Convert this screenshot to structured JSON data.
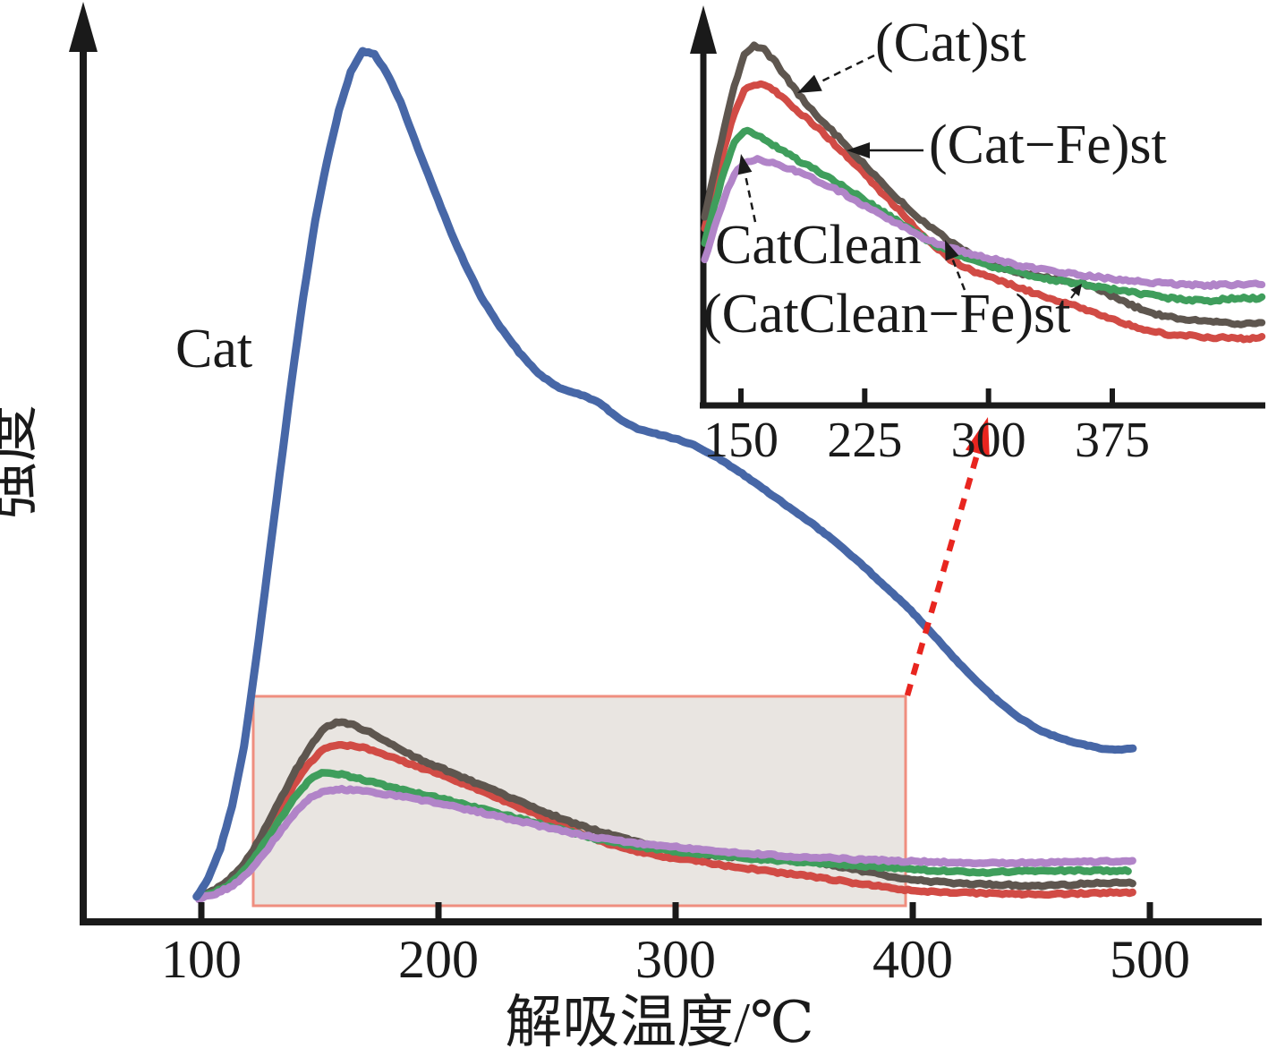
{
  "figure": {
    "background": "#ffffff",
    "axis_color": "#1a1a1a",
    "box_fill": "#e9e5e1",
    "box_border": "#ef8e7f",
    "zoom_arrow_color": "#e8251f"
  },
  "labels": {
    "cat": "Cat",
    "cat_st": "(Cat)st",
    "cat_fe_st": "(Cat−Fe)st",
    "catclean": "CatClean",
    "catclean_fe_st": "(CatClean−Fe)st",
    "xlabel": "解吸温度/℃",
    "ylabel": "强度"
  },
  "chart_data": {
    "type": "line",
    "title": "",
    "xlabel": "解吸温度/℃",
    "ylabel": "强度",
    "x_ticks": [
      100,
      200,
      300,
      400,
      500
    ],
    "xlim": [
      50,
      545
    ],
    "ylim": [
      0,
      105
    ],
    "y_axis_note": "intensity in arbitrary units, arrow axis, no y ticks",
    "grid": false,
    "legend": "inline annotations with arrows",
    "series": [
      {
        "name": "Cat",
        "color": "#4767a7",
        "points": [
          [
            98,
            0.3
          ],
          [
            103,
            2.5
          ],
          [
            108,
            6
          ],
          [
            113,
            11
          ],
          [
            118,
            18
          ],
          [
            123,
            28
          ],
          [
            128,
            39
          ],
          [
            133,
            50
          ],
          [
            138,
            61
          ],
          [
            143,
            71
          ],
          [
            148,
            80
          ],
          [
            153,
            87
          ],
          [
            158,
            93
          ],
          [
            163,
            97.5
          ],
          [
            168,
            100
          ],
          [
            173,
            99.6
          ],
          [
            178,
            97.5
          ],
          [
            184,
            94
          ],
          [
            190,
            89.5
          ],
          [
            197,
            84.5
          ],
          [
            204,
            79.5
          ],
          [
            211,
            75
          ],
          [
            218,
            71
          ],
          [
            226,
            67.5
          ],
          [
            234,
            64.5
          ],
          [
            242,
            62
          ],
          [
            251,
            60.3
          ],
          [
            260,
            59.5
          ],
          [
            268,
            58.5
          ],
          [
            276,
            56.7
          ],
          [
            284,
            55.5
          ],
          [
            293,
            54.8
          ],
          [
            301,
            54.2
          ],
          [
            309,
            53.4
          ],
          [
            318,
            52
          ],
          [
            328,
            50.2
          ],
          [
            338,
            48.2
          ],
          [
            348,
            46.2
          ],
          [
            358,
            44.2
          ],
          [
            368,
            42
          ],
          [
            378,
            39.6
          ],
          [
            388,
            37
          ],
          [
            398,
            34.4
          ],
          [
            408,
            31.4
          ],
          [
            417,
            28.6
          ],
          [
            426,
            26
          ],
          [
            435,
            23.6
          ],
          [
            444,
            21.6
          ],
          [
            453,
            20
          ],
          [
            462,
            19
          ],
          [
            471,
            18.3
          ],
          [
            480,
            17.8
          ],
          [
            488,
            17.6
          ],
          [
            494,
            17.9
          ]
        ]
      },
      {
        "name": "(Cat)st",
        "color": "#5e564f",
        "points": [
          [
            99,
            0.2
          ],
          [
            106,
            1.2
          ],
          [
            112,
            2.4
          ],
          [
            117,
            3.9
          ],
          [
            122,
            5.8
          ],
          [
            128,
            9
          ],
          [
            134,
            12.1
          ],
          [
            140,
            15.3
          ],
          [
            146,
            18
          ],
          [
            152,
            20.3
          ],
          [
            158,
            20.9
          ],
          [
            164,
            20.6
          ],
          [
            171,
            19.7
          ],
          [
            178,
            18.6
          ],
          [
            185,
            17.5
          ],
          [
            193,
            16.4
          ],
          [
            201,
            15.5
          ],
          [
            211,
            14.3
          ],
          [
            222,
            13
          ],
          [
            233,
            11.7
          ],
          [
            244,
            10.4
          ],
          [
            255,
            9.2
          ],
          [
            266,
            8.2
          ],
          [
            277,
            7.3
          ],
          [
            288,
            6.5
          ],
          [
            299,
            5.8
          ],
          [
            310,
            5.4
          ],
          [
            321,
            5.1
          ],
          [
            332,
            4.9
          ],
          [
            343,
            4.7
          ],
          [
            354,
            4.5
          ],
          [
            365,
            4.1
          ],
          [
            376,
            3.5
          ],
          [
            387,
            2.9
          ],
          [
            398,
            2.4
          ],
          [
            409,
            2.1
          ],
          [
            420,
            1.9
          ],
          [
            431,
            1.8
          ],
          [
            442,
            1.7
          ],
          [
            453,
            1.6
          ],
          [
            464,
            1.7
          ],
          [
            475,
            1.9
          ],
          [
            486,
            2
          ],
          [
            494,
            1.9
          ]
        ]
      },
      {
        "name": "(Cat−Fe)st",
        "color": "#d14b45",
        "points": [
          [
            99,
            0.2
          ],
          [
            106,
            1
          ],
          [
            112,
            2
          ],
          [
            117,
            3.5
          ],
          [
            122,
            5.3
          ],
          [
            128,
            8.2
          ],
          [
            134,
            11.1
          ],
          [
            140,
            13.9
          ],
          [
            146,
            16.2
          ],
          [
            152,
            17.8
          ],
          [
            158,
            18.2
          ],
          [
            164,
            18.1
          ],
          [
            171,
            17.7
          ],
          [
            178,
            17
          ],
          [
            185,
            16.3
          ],
          [
            193,
            15.5
          ],
          [
            201,
            14.7
          ],
          [
            211,
            13.6
          ],
          [
            222,
            12.3
          ],
          [
            233,
            11
          ],
          [
            244,
            9.7
          ],
          [
            255,
            8.4
          ],
          [
            266,
            7.1
          ],
          [
            277,
            6.1
          ],
          [
            288,
            5.4
          ],
          [
            299,
            4.9
          ],
          [
            310,
            4.5
          ],
          [
            321,
            4
          ],
          [
            332,
            3.6
          ],
          [
            343,
            3.2
          ],
          [
            354,
            2.8
          ],
          [
            365,
            2.4
          ],
          [
            376,
            1.9
          ],
          [
            387,
            1.5
          ],
          [
            398,
            1.1
          ],
          [
            409,
            0.9
          ],
          [
            420,
            0.8
          ],
          [
            431,
            0.7
          ],
          [
            442,
            0.65
          ],
          [
            453,
            0.6
          ],
          [
            464,
            0.65
          ],
          [
            475,
            0.75
          ],
          [
            486,
            0.8
          ],
          [
            494,
            0.8
          ]
        ]
      },
      {
        "name": "CatClean",
        "color": "#3f9e5c",
        "points": [
          [
            99,
            0.2
          ],
          [
            106,
            0.9
          ],
          [
            112,
            1.8
          ],
          [
            117,
            3.1
          ],
          [
            122,
            4.7
          ],
          [
            128,
            7.2
          ],
          [
            134,
            9.8
          ],
          [
            140,
            12.3
          ],
          [
            146,
            14.2
          ],
          [
            152,
            15
          ],
          [
            158,
            14.8
          ],
          [
            164,
            14.4
          ],
          [
            171,
            13.9
          ],
          [
            178,
            13.4
          ],
          [
            185,
            12.9
          ],
          [
            193,
            12.4
          ],
          [
            201,
            11.9
          ],
          [
            211,
            11.2
          ],
          [
            222,
            10.4
          ],
          [
            233,
            9.6
          ],
          [
            244,
            8.8
          ],
          [
            255,
            8
          ],
          [
            266,
            7.2
          ],
          [
            277,
            6.6
          ],
          [
            288,
            6.1
          ],
          [
            299,
            5.7
          ],
          [
            310,
            5.4
          ],
          [
            321,
            5.1
          ],
          [
            332,
            4.8
          ],
          [
            343,
            4.6
          ],
          [
            354,
            4.4
          ],
          [
            365,
            4.2
          ],
          [
            376,
            4
          ],
          [
            387,
            3.8
          ],
          [
            398,
            3.6
          ],
          [
            409,
            3.4
          ],
          [
            420,
            3.3
          ],
          [
            431,
            3.2
          ],
          [
            442,
            3.3
          ],
          [
            453,
            3.4
          ],
          [
            464,
            3.4
          ],
          [
            475,
            3.4
          ],
          [
            486,
            3.4
          ],
          [
            492,
            3.4
          ]
        ]
      },
      {
        "name": "(CatClean−Fe)st",
        "color": "#b184c8",
        "points": [
          [
            99,
            0.1
          ],
          [
            106,
            0.7
          ],
          [
            112,
            1.4
          ],
          [
            117,
            2.5
          ],
          [
            122,
            3.9
          ],
          [
            128,
            6
          ],
          [
            134,
            8.3
          ],
          [
            140,
            10.4
          ],
          [
            146,
            12
          ],
          [
            152,
            12.8
          ],
          [
            158,
            13
          ],
          [
            164,
            12.9
          ],
          [
            171,
            12.7
          ],
          [
            178,
            12.4
          ],
          [
            185,
            12.1
          ],
          [
            193,
            11.7
          ],
          [
            201,
            11.3
          ],
          [
            211,
            10.7
          ],
          [
            222,
            10
          ],
          [
            233,
            9.3
          ],
          [
            244,
            8.6
          ],
          [
            255,
            7.9
          ],
          [
            266,
            7.3
          ],
          [
            277,
            6.9
          ],
          [
            288,
            6.5
          ],
          [
            299,
            6.2
          ],
          [
            310,
            5.9
          ],
          [
            321,
            5.6
          ],
          [
            332,
            5.4
          ],
          [
            343,
            5.2
          ],
          [
            354,
            5
          ],
          [
            365,
            4.9
          ],
          [
            376,
            4.7
          ],
          [
            387,
            4.6
          ],
          [
            398,
            4.5
          ],
          [
            409,
            4.4
          ],
          [
            420,
            4.35
          ],
          [
            431,
            4.3
          ],
          [
            442,
            4.3
          ],
          [
            453,
            4.35
          ],
          [
            464,
            4.4
          ],
          [
            475,
            4.45
          ],
          [
            486,
            4.5
          ],
          [
            494,
            4.55
          ]
        ]
      }
    ],
    "main_curve_label": "Cat",
    "inset": {
      "x_ticks": [
        150,
        225,
        300,
        375
      ],
      "x_range": [
        126,
        467
      ],
      "series_shown": [
        "(Cat)st",
        "(Cat−Fe)st",
        "CatClean",
        "(CatClean−Fe)st"
      ],
      "annotations": [
        "(Cat)st",
        "(Cat−Fe)st",
        "CatClean",
        "(CatClean−Fe)st"
      ]
    },
    "highlight_box": {
      "x_range": [
        122,
        397
      ],
      "linked_to": "inset",
      "style": "shaded rectangle with red dashed arrow to inset"
    }
  }
}
